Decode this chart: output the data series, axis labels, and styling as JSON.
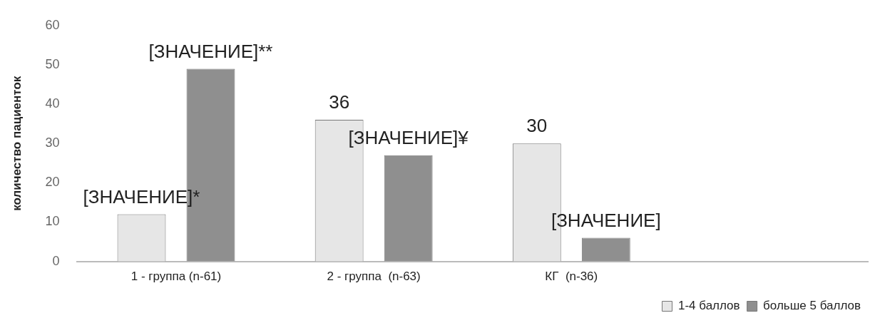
{
  "chart_data": {
    "type": "bar",
    "ylabel": "количество пациенток",
    "categories": [
      "1 - группа (n-61)",
      "2 - группа  (n-63)",
      "КГ  (n-36)",
      null
    ],
    "series": [
      {
        "name": "1-4 баллов",
        "color": "#e6e6e6",
        "values": [
          12,
          36,
          30,
          null
        ],
        "value_labels": [
          "[ЗНАЧЕНИЕ]*",
          "36",
          "30",
          null
        ]
      },
      {
        "name": "больше 5 баллов",
        "color": "#8f8f8f",
        "values": [
          49,
          27,
          6,
          null
        ],
        "value_labels": [
          "[ЗНАЧЕНИЕ]**",
          "[ЗНАЧЕНИЕ]¥",
          "[ЗНАЧЕНИЕ]",
          null
        ]
      }
    ],
    "ylim": [
      0,
      60
    ],
    "yticks": [
      0,
      10,
      20,
      30,
      40,
      50,
      60
    ],
    "grid": false,
    "legend": "bottom right"
  }
}
